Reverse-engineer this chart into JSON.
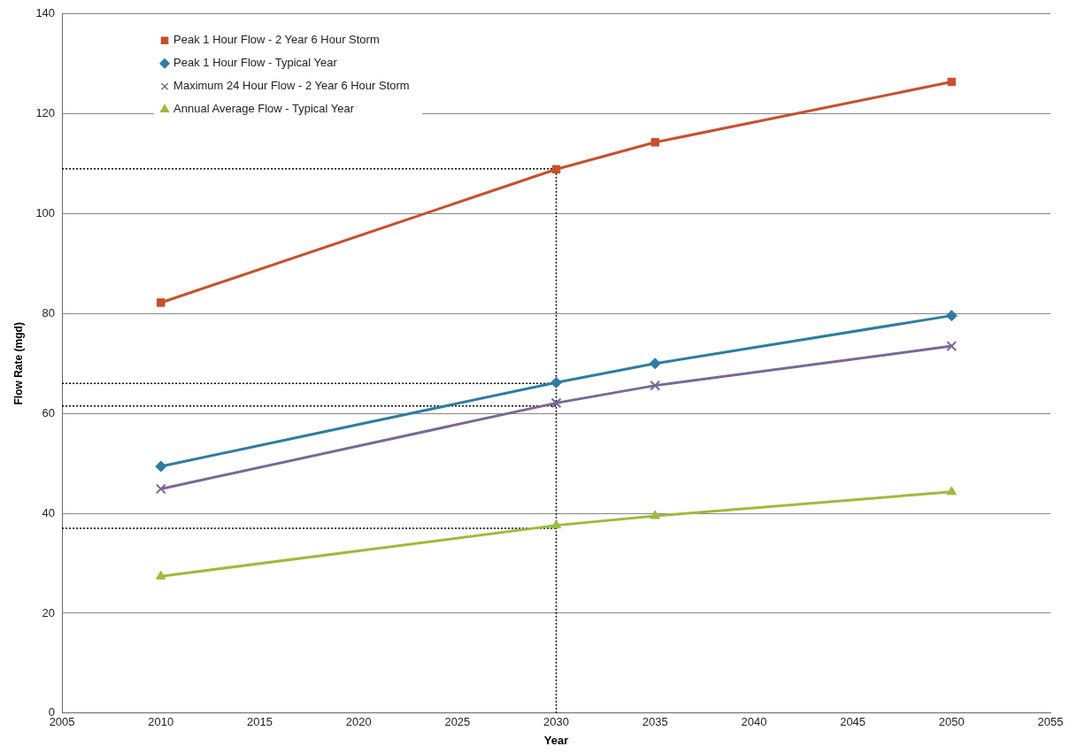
{
  "chart_data": {
    "type": "line",
    "xlabel": "Year",
    "ylabel": "Flow Rate (mgd)",
    "x": [
      2010,
      2030,
      2035,
      2050
    ],
    "xlim": [
      2005,
      2055
    ],
    "xticks": [
      2005,
      2010,
      2015,
      2020,
      2025,
      2030,
      2035,
      2040,
      2045,
      2050,
      2055
    ],
    "ylim": [
      0,
      140
    ],
    "yticks": [
      0,
      20,
      40,
      60,
      80,
      100,
      120,
      140
    ],
    "grid": "y",
    "legend": "top left",
    "line_style": "solid",
    "series": [
      {
        "name": "Peak 1 Hour Flow - 2 Year 6 Hour Storm",
        "color": "#c8502c",
        "marker": "square",
        "values": [
          82.2,
          108.9,
          114.3,
          126.4
        ]
      },
      {
        "name": "Peak 1 Hour Flow - Typical Year",
        "color": "#2e7ca4",
        "marker": "diamond",
        "values": [
          49.4,
          66.2,
          70.0,
          79.6
        ]
      },
      {
        "name": "Maximum 24 Hour Flow - 2 Year 6 Hour Storm",
        "color": "#786898",
        "marker": "cross",
        "values": [
          44.9,
          62.1,
          65.6,
          73.5
        ]
      },
      {
        "name": "Annual Average Flow - Typical Year",
        "color": "#9cbc3c",
        "marker": "triangle",
        "values": [
          27.4,
          37.6,
          39.5,
          44.3
        ]
      }
    ],
    "ref_lines": [
      {
        "axis": "x",
        "value": 2030,
        "color": "#000000",
        "line_style": "dotted"
      },
      {
        "axis": "y",
        "value": 109,
        "color": "#000000",
        "line_style": "dotted"
      },
      {
        "axis": "y",
        "value": 66,
        "color": "#000000",
        "line_style": "dotted"
      },
      {
        "axis": "y",
        "value": 61.5,
        "color": "#000000",
        "line_style": "dotted"
      },
      {
        "axis": "y",
        "value": 37,
        "color": "#000000",
        "line_style": "dotted"
      }
    ]
  }
}
